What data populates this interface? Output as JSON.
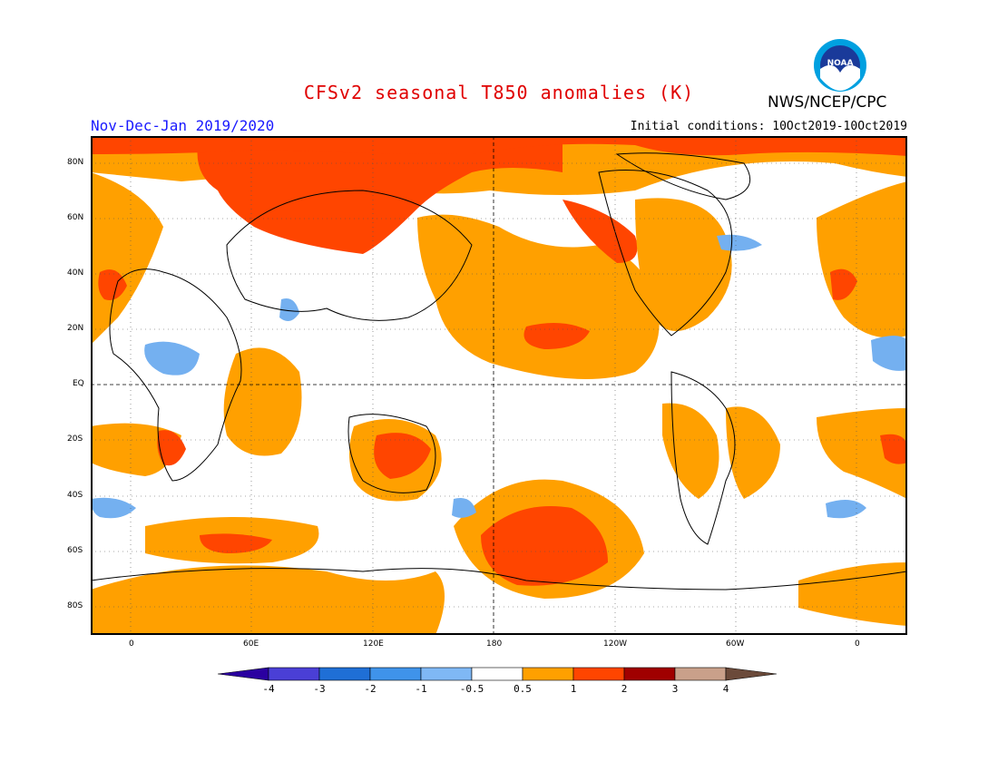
{
  "header": {
    "title": "CFSv2 seasonal T850 anomalies (K)",
    "period": "Nov-Dec-Jan 2019/2020",
    "initial_conditions": "Initial conditions: 10Oct2019-10Oct2019",
    "agency": "NWS/NCEP/CPC",
    "logo_text": "NOAA"
  },
  "axes": {
    "lat_labels": [
      "80N",
      "60N",
      "40N",
      "20N",
      "EQ",
      "20S",
      "40S",
      "60S",
      "80S"
    ],
    "lon_labels": [
      "0",
      "60E",
      "120E",
      "180",
      "120W",
      "60W",
      "0"
    ]
  },
  "legend": {
    "labels": [
      "-4",
      "-3",
      "-2",
      "-1",
      "-0.5",
      "0.5",
      "1",
      "2",
      "3",
      "4"
    ],
    "colors": [
      "#2a00a0",
      "#4a3fd6",
      "#1f6fd6",
      "#3f93ea",
      "#7fb8f5",
      "#ffffff",
      "#ffa000",
      "#ff4500",
      "#a00000",
      "#c9a08a",
      "#6b4a3a"
    ]
  },
  "colors": {
    "light_warm": "#ffa000",
    "warm": "#ff4500",
    "light_cool": "#74b0f0",
    "cool": "#3f93ea"
  }
}
